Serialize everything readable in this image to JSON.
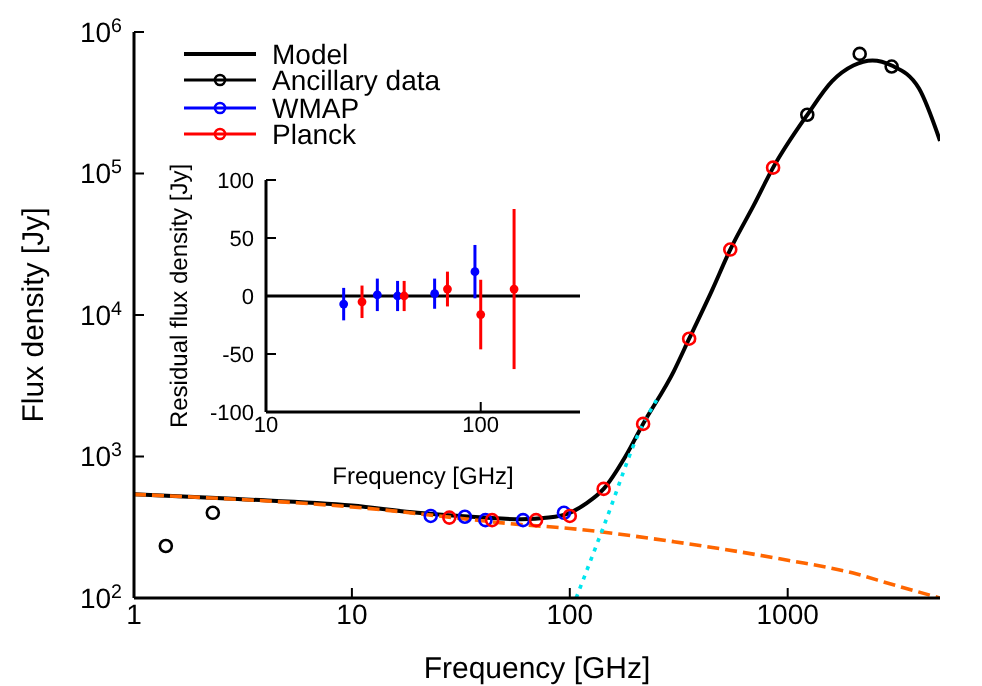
{
  "chart_data": [
    {
      "type": "line",
      "xlabel": "Frequency [GHz]",
      "ylabel": "Flux density [Jy]",
      "log": "xy",
      "xlim": [
        1,
        5000
      ],
      "xticks": [
        1,
        10,
        100,
        1000
      ],
      "ylim": [
        100,
        1000000
      ],
      "yticks": [
        {
          "value": 100,
          "label": "10$^{2}$"
        },
        {
          "value": 1000,
          "label": "10$^{3}$"
        },
        {
          "value": 10000,
          "label": "10$^{4}$"
        },
        {
          "value": 100000,
          "label": "10$^{5}$"
        },
        {
          "value": 1000000,
          "label": "10$^{6}$"
        }
      ],
      "legend": "top left",
      "series": [
        {
          "name": "Model",
          "color": "#000000",
          "marker": "none",
          "line_style": "solid",
          "x": [
            1,
            3,
            10,
            20,
            40,
            60,
            80,
            100,
            120,
            143,
            180,
            217,
            300,
            353,
            450,
            545,
            700,
            857,
            1230,
            1600,
            2000,
            2450,
            3000,
            4000,
            5000
          ],
          "values": [
            540,
            500,
            450,
            400,
            370,
            360,
            370,
            400,
            470,
            590,
            1000,
            1700,
            4000,
            6800,
            15000,
            29000,
            60000,
            110000,
            260000,
            450000,
            580000,
            630000,
            580000,
            400000,
            170000
          ]
        },
        {
          "name": "Ancillary data",
          "type": "scatter",
          "color": "#000000",
          "marker": "circle",
          "x": [
            1.4,
            2.3,
            1230,
            2140,
            3000
          ],
          "values": [
            233,
            400,
            260000,
            700000,
            570000
          ]
        },
        {
          "name": "WMAP",
          "type": "scatter",
          "color": "#0000ff",
          "marker": "circle",
          "x": [
            23,
            33,
            41,
            61,
            94
          ],
          "values": [
            380,
            375,
            355,
            355,
            400
          ]
        },
        {
          "name": "Planck",
          "type": "scatter",
          "color": "#ff0000",
          "marker": "circle",
          "x": [
            28,
            44,
            70,
            100,
            143,
            217,
            353,
            545,
            857
          ],
          "values": [
            370,
            355,
            355,
            380,
            590,
            1700,
            6800,
            29000,
            110000
          ]
        },
        {
          "color": "#ff6600",
          "marker": "none",
          "line_style": "dashed",
          "x": [
            1,
            10,
            60,
            100,
            300,
            1000,
            2000,
            3000,
            5000
          ],
          "values": [
            540,
            440,
            330,
            310,
            250,
            185,
            150,
            125,
            100
          ]
        },
        {
          "color": "#00e5ee",
          "marker": "none",
          "line_style": "dotted",
          "x": [
            107,
            143,
            217,
            250
          ],
          "values": [
            100,
            320,
            1700,
            2500
          ]
        }
      ]
    },
    {
      "type": "scatter",
      "xlabel": "Frequency [GHz]",
      "ylabel": "Residual flux density [Jy]",
      "log": "x",
      "xlim": [
        10,
        290
      ],
      "xticks": [
        10,
        100
      ],
      "ylim": [
        -100,
        100
      ],
      "yticks": [
        -100,
        -50,
        0,
        50,
        100
      ],
      "ref_lines": [
        {
          "axis": "y",
          "value": 0,
          "color": "#000000"
        }
      ],
      "series": [
        {
          "color": "#0000ff",
          "x": [
            23,
            33,
            41,
            61,
            94
          ],
          "values": [
            -7,
            1,
            0,
            2,
            21
          ],
          "errors": [
            14,
            14,
            13,
            13,
            23
          ]
        },
        {
          "color": "#ff0000",
          "x": [
            28,
            44,
            70,
            100,
            143
          ],
          "values": [
            -5,
            0,
            6,
            -16,
            6
          ],
          "errors": [
            14,
            13,
            15,
            30,
            69
          ]
        }
      ]
    }
  ]
}
